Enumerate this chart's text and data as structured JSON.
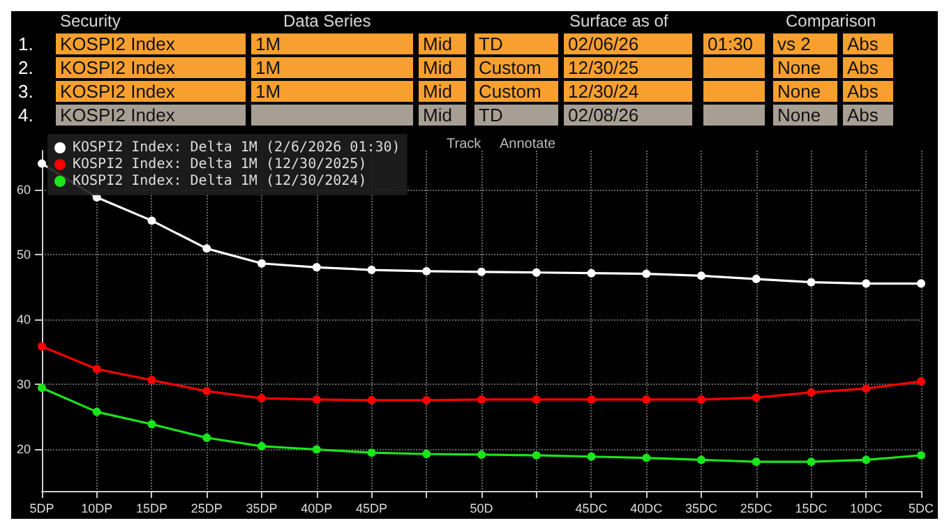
{
  "chart_data": {
    "type": "line",
    "categories": [
      "5DP",
      "10DP",
      "15DP",
      "25DP",
      "35DP",
      "40DP",
      "45DP",
      null,
      "50D",
      null,
      "45DC",
      "40DC",
      "35DC",
      "25DC",
      "15DC",
      "10DC",
      "5DC"
    ],
    "ylim": [
      13.5,
      66
    ],
    "yticks": [
      20,
      30,
      40,
      50,
      60
    ],
    "series": [
      {
        "name": "KOSPI2 Index: Delta 1M (2/6/2026 01:30)",
        "color": "#ffffff",
        "values": [
          64,
          58.8,
          55.2,
          50.9,
          48.6,
          48.0,
          47.6,
          47.4,
          47.3,
          47.2,
          47.1,
          47.0,
          46.7,
          46.2,
          45.7,
          45.5,
          45.5
        ]
      },
      {
        "name": "KOSPI2 Index: Delta 1M (12/30/2025)",
        "color": "#ff0000",
        "values": [
          35.8,
          32.3,
          30.6,
          28.9,
          27.8,
          27.6,
          27.5,
          27.5,
          27.6,
          27.6,
          27.6,
          27.6,
          27.6,
          27.9,
          28.7,
          29.3,
          30.4
        ]
      },
      {
        "name": "KOSPI2 Index: Delta 1M (12/30/2024)",
        "color": "#19e619",
        "values": [
          29.4,
          25.7,
          23.8,
          21.7,
          20.4,
          19.9,
          19.4,
          19.2,
          19.1,
          19.0,
          18.8,
          18.6,
          18.3,
          18.0,
          18.0,
          18.3,
          19.0
        ]
      }
    ],
    "grid": true,
    "legend": "top left",
    "marker": "circle",
    "line_style": "solid",
    "annotations": [
      "Security",
      "Data Series",
      "Surface as of",
      "Comparison",
      "1.",
      "KOSPI2 Index",
      "1M",
      "Mid",
      "TD",
      "02/06/26",
      "01:30",
      "vs 2",
      "Abs",
      "2.",
      "KOSPI2 Index",
      "1M",
      "Mid",
      "Custom",
      "12/30/25",
      null,
      "None",
      "Abs",
      "3.",
      "KOSPI2 Index",
      "1M",
      "Mid",
      "Custom",
      "12/30/24",
      null,
      "None",
      "Abs",
      "4.",
      "KOSPI2 Index",
      null,
      "Mid",
      "TD",
      "02/08/26",
      null,
      "None",
      "Abs",
      "Track",
      "Annotate"
    ]
  }
}
